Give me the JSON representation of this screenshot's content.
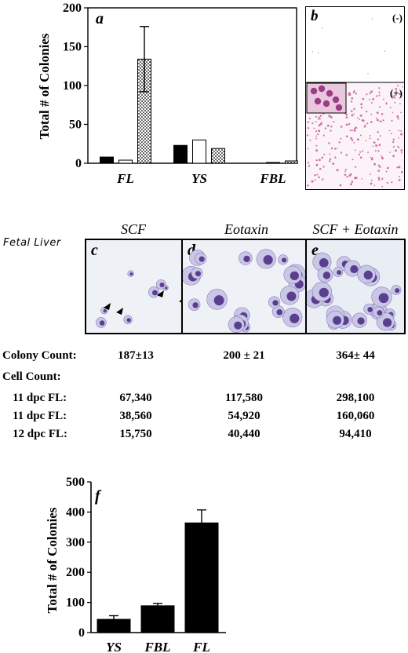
{
  "panel_a": {
    "letter": "a"
  },
  "panel_b": {
    "letter": "b",
    "minus_label": "(-)",
    "plus_label": "(+)"
  },
  "panel_f": {
    "letter": "f"
  },
  "fetal_liver_label": "Fetal Liver",
  "micro_panels": [
    {
      "letter": "c",
      "heading": "SCF"
    },
    {
      "letter": "d",
      "heading": "Eotaxin"
    },
    {
      "letter": "e",
      "heading": "SCF + Eotaxin"
    }
  ],
  "table": {
    "colony_count_label": "Colony Count:",
    "colony_counts": [
      "187±13",
      "200 ± 21",
      "364± 44"
    ],
    "cell_count_label": "Cell Count:",
    "rows": [
      {
        "label": "11 dpc FL:",
        "values": [
          "67,340",
          "117,580",
          "298,100"
        ]
      },
      {
        "label": "11 dpc FL:",
        "values": [
          "38,560",
          "54,920",
          "160,060"
        ]
      },
      {
        "label": "12 dpc FL:",
        "values": [
          "15,750",
          "40,440",
          "94,410"
        ]
      }
    ]
  },
  "chart_data": [
    {
      "type": "bar",
      "panel": "a",
      "title": "",
      "ylabel": "Total # of Colonies",
      "xlabel": "",
      "ylim": [
        0,
        200
      ],
      "yticks": [
        0,
        50,
        100,
        150,
        200
      ],
      "categories": [
        "FL",
        "YS",
        "FBL"
      ],
      "series": [
        {
          "fill": "#000000",
          "values": [
            8,
            23,
            0
          ],
          "errors": [
            0,
            0,
            0
          ]
        },
        {
          "fill": "#ffffff",
          "values": [
            4,
            30,
            1
          ],
          "errors": [
            0,
            0,
            0
          ]
        },
        {
          "fill": "stipple",
          "values": [
            134,
            19,
            3
          ],
          "errors": [
            42,
            0,
            0
          ]
        }
      ]
    },
    {
      "type": "bar",
      "panel": "f",
      "title": "",
      "ylabel": "Total # of Colonies",
      "xlabel": "",
      "ylim": [
        0,
        500
      ],
      "yticks": [
        0,
        100,
        200,
        300,
        400,
        500
      ],
      "categories": [
        "YS",
        "FBL",
        "FL"
      ],
      "series": [
        {
          "fill": "#000000",
          "values": [
            44,
            89,
            364
          ],
          "errors": [
            12,
            8,
            43
          ]
        }
      ]
    }
  ]
}
